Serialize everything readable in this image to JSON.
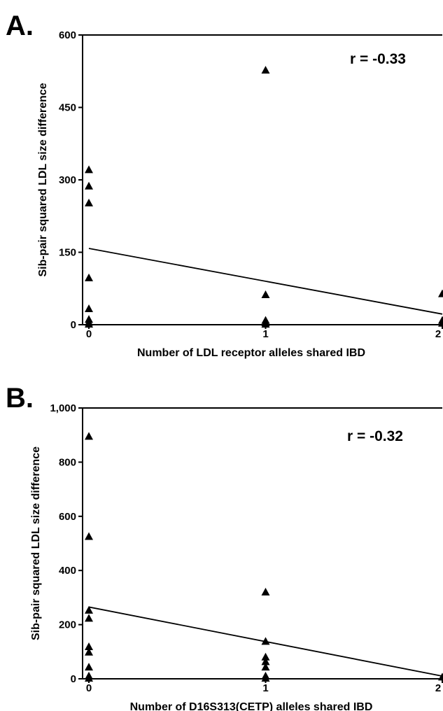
{
  "chart_data": [
    {
      "panel_label": "A.",
      "type": "scatter",
      "annotation": "r = -0.33",
      "xlabel": "Number of LDL receptor alleles shared IBD",
      "ylabel": "Sib-pair squared LDL size difference",
      "xlim": [
        0,
        2
      ],
      "ylim": [
        0,
        600
      ],
      "x_ticks": [
        0,
        1,
        2
      ],
      "x_tick_labels": [
        "0",
        "1",
        "2"
      ],
      "y_ticks": [
        0,
        150,
        300,
        450,
        600
      ],
      "y_tick_labels": [
        "0",
        "150",
        "300",
        "450",
        "600"
      ],
      "grid": false,
      "points": [
        {
          "x": 0,
          "y": 322
        },
        {
          "x": 0,
          "y": 288
        },
        {
          "x": 0,
          "y": 253
        },
        {
          "x": 0,
          "y": 98
        },
        {
          "x": 0,
          "y": 34
        },
        {
          "x": 0,
          "y": 12
        },
        {
          "x": 0,
          "y": 6
        },
        {
          "x": 0,
          "y": 2
        },
        {
          "x": 1,
          "y": 528
        },
        {
          "x": 1,
          "y": 63
        },
        {
          "x": 1,
          "y": 10
        },
        {
          "x": 1,
          "y": 5
        },
        {
          "x": 1,
          "y": 2
        },
        {
          "x": 2,
          "y": 65
        },
        {
          "x": 2,
          "y": 10
        },
        {
          "x": 2,
          "y": 4
        }
      ],
      "regression_line": {
        "x": [
          0,
          2
        ],
        "y": [
          158,
          22
        ]
      }
    },
    {
      "panel_label": "B.",
      "type": "scatter",
      "annotation": "r = -0.32",
      "xlabel": "Number of D16S313(CETP) alleles shared IBD",
      "ylabel": "Sib-pair squared LDL size difference",
      "xlim": [
        0,
        2
      ],
      "ylim": [
        0,
        1000
      ],
      "x_ticks": [
        0,
        1,
        2
      ],
      "x_tick_labels": [
        "0",
        "1",
        "2"
      ],
      "y_ticks": [
        0,
        200,
        400,
        600,
        800,
        1000
      ],
      "y_tick_labels": [
        "0",
        "200",
        "400",
        "600",
        "800",
        "1,000"
      ],
      "grid": false,
      "points": [
        {
          "x": 0,
          "y": 897
        },
        {
          "x": 0,
          "y": 527
        },
        {
          "x": 0,
          "y": 255
        },
        {
          "x": 0,
          "y": 225
        },
        {
          "x": 0,
          "y": 120
        },
        {
          "x": 0,
          "y": 100
        },
        {
          "x": 0,
          "y": 45
        },
        {
          "x": 0,
          "y": 12
        },
        {
          "x": 0,
          "y": 4
        },
        {
          "x": 1,
          "y": 322
        },
        {
          "x": 1,
          "y": 140
        },
        {
          "x": 1,
          "y": 82
        },
        {
          "x": 1,
          "y": 65
        },
        {
          "x": 1,
          "y": 45
        },
        {
          "x": 1,
          "y": 12
        },
        {
          "x": 1,
          "y": 4
        },
        {
          "x": 2,
          "y": 8
        }
      ],
      "regression_line": {
        "x": [
          0,
          2
        ],
        "y": [
          265,
          10
        ]
      }
    }
  ]
}
